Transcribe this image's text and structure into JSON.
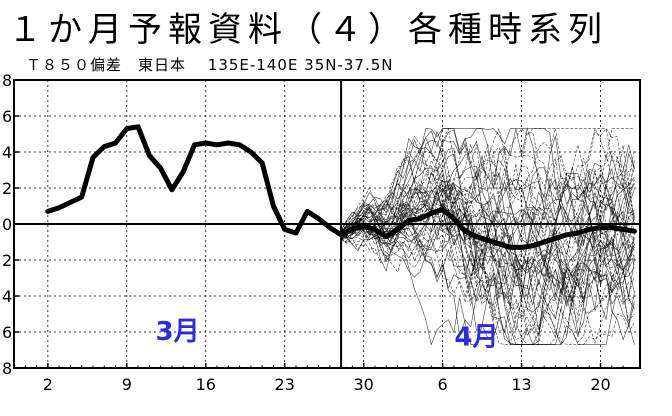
{
  "header": {
    "title": "１か月予報資料（４）各種時系列",
    "subtitle": "Ｔ８５０偏差　東日本　 135E-140E  35N-37.5N"
  },
  "chart_data": {
    "type": "line",
    "title": "１か月予報資料（４）各種時系列",
    "subtitle": "Ｔ８５０偏差　東日本　 135E-140E  35N-37.5N",
    "xlabel": "",
    "ylabel": "",
    "ylim": [
      -8,
      8
    ],
    "y_ticks": [
      8,
      6,
      4,
      2,
      0,
      2,
      4,
      6,
      8
    ],
    "y_tick_values": [
      8,
      6,
      4,
      2,
      0,
      -2,
      -4,
      -6,
      -8
    ],
    "x_day_range": [
      0,
      51
    ],
    "x_ticks": [
      {
        "label": "2",
        "day": 2
      },
      {
        "label": "9",
        "day": 9
      },
      {
        "label": "16",
        "day": 16
      },
      {
        "label": "23",
        "day": 23
      },
      {
        "label": "30",
        "day": 30
      },
      {
        "label": "6",
        "day": 37
      },
      {
        "label": "13",
        "day": 44
      },
      {
        "label": "20",
        "day": 51
      }
    ],
    "grid": true,
    "forecast_start_day": 28,
    "month_labels": [
      {
        "text": "3月",
        "day": 13.5,
        "value": -5.9
      },
      {
        "text": "4月",
        "day": 40,
        "value": -6.2
      }
    ],
    "colors": {
      "observed": "#000000",
      "ensemble": "#000000",
      "month_label": "#2b2be0",
      "grid": "#000000"
    },
    "series": [
      {
        "role": "observed",
        "x": [
          2,
          3,
          4,
          5,
          6,
          7,
          8,
          9,
          10,
          11,
          12,
          13,
          14,
          15,
          16,
          17,
          18,
          19,
          20,
          21,
          22,
          23,
          24,
          25,
          26,
          27,
          28,
          29,
          30
        ],
        "values": [
          0.7,
          0.9,
          1.2,
          1.5,
          3.7,
          4.3,
          4.5,
          5.3,
          5.4,
          3.8,
          3.1,
          1.9,
          2.9,
          4.4,
          4.5,
          4.4,
          4.5,
          4.4,
          4.0,
          3.4,
          1.0,
          -0.3,
          -0.5,
          0.7,
          0.3,
          -0.2,
          -0.6,
          -0.3,
          -0.1
        ]
      },
      {
        "role": "ensemble-mean",
        "x": [
          28,
          29,
          30,
          31,
          32,
          33,
          34,
          35,
          36,
          37,
          38,
          39,
          40,
          41,
          42,
          43,
          44,
          45,
          46,
          47,
          48,
          49,
          50,
          51,
          52,
          53,
          54
        ],
        "values": [
          -0.6,
          -0.3,
          -0.1,
          -0.3,
          -0.7,
          -0.3,
          0.2,
          0.3,
          0.6,
          0.8,
          0.3,
          -0.4,
          -0.7,
          -0.9,
          -1.1,
          -1.3,
          -1.3,
          -1.2,
          -1.0,
          -0.8,
          -0.6,
          -0.5,
          -0.3,
          -0.2,
          -0.2,
          -0.3,
          -0.4
        ]
      }
    ],
    "ensemble": {
      "member_count": 50,
      "x_start": 28,
      "x_end": 54,
      "spread_at_end": 4.5
    }
  }
}
